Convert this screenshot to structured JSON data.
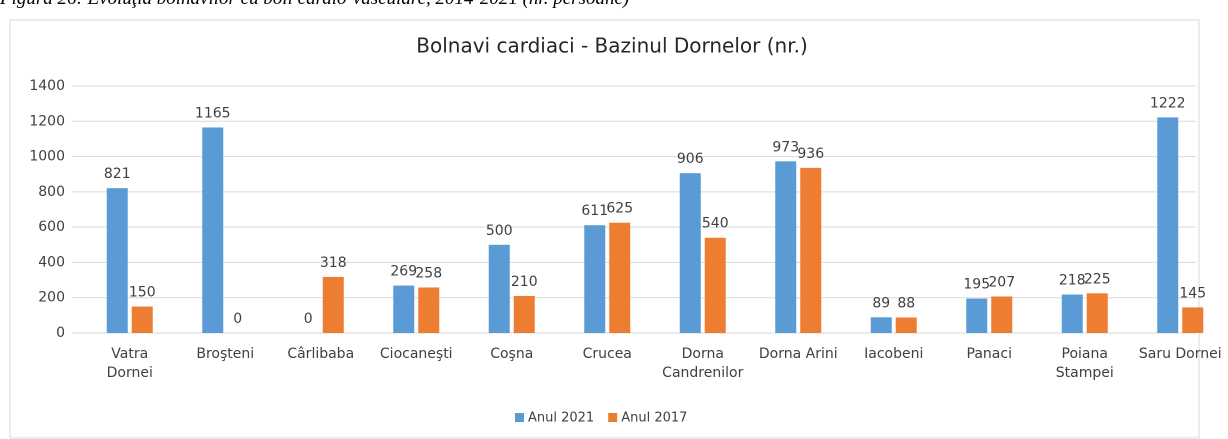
{
  "caption": "Figura 26: Evoluţia bolnavilor cu boli cardio-vasculare, 2014-2021 (nr. persoane)",
  "chart_data": {
    "type": "bar",
    "title": "Bolnavi cardiaci - Bazinul Dornelor (nr.)",
    "categories": [
      "Vatra\nDornei",
      "Broşteni",
      "Cârlibaba",
      "Ciocaneşti",
      "Coşna",
      "Crucea",
      "Dorna\nCandrenilor",
      "Dorna Arini",
      "Iacobeni",
      "Panaci",
      "Poiana\nStampei",
      "Saru Dornei"
    ],
    "series": [
      {
        "name": "Anul 2021",
        "color": "#5b9bd5",
        "values": [
          821,
          1165,
          0,
          269,
          500,
          611,
          906,
          973,
          89,
          195,
          218,
          1222
        ]
      },
      {
        "name": "Anul 2017",
        "color": "#ed7d31",
        "values": [
          150,
          0,
          318,
          258,
          210,
          625,
          540,
          936,
          88,
          207,
          225,
          145
        ]
      }
    ],
    "ylim": [
      0,
      1400
    ],
    "yticks": [
      0,
      200,
      400,
      600,
      800,
      1000,
      1200,
      1400
    ],
    "grid": true,
    "legend": "bottom"
  }
}
